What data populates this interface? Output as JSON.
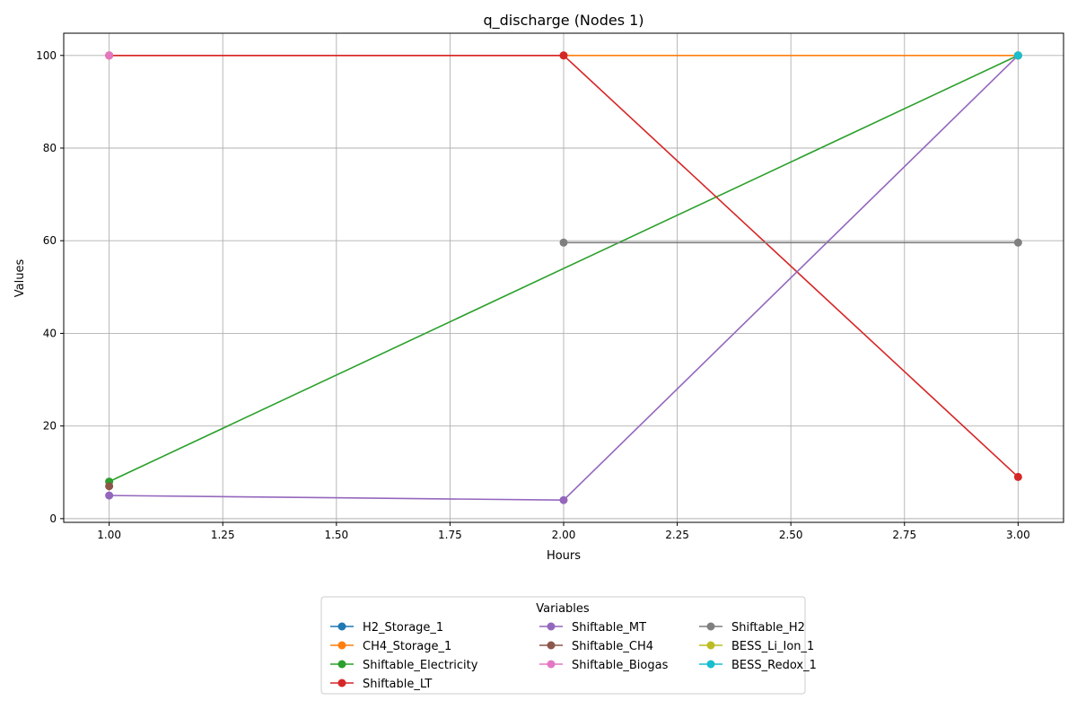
{
  "chart_data": {
    "type": "line",
    "title": "q_discharge (Nodes 1)",
    "xlabel": "Hours",
    "ylabel": "Values",
    "xlim": [
      0.9,
      3.1
    ],
    "ylim": [
      -0.8,
      104.8
    ],
    "xticks": [
      "1.00",
      "1.25",
      "1.50",
      "1.75",
      "2.00",
      "2.25",
      "2.50",
      "2.75",
      "3.00"
    ],
    "yticks": [
      "0",
      "20",
      "40",
      "60",
      "80",
      "100"
    ],
    "grid": true,
    "legend": {
      "title": "Variables",
      "placement": "bottom-center",
      "columns": 3
    },
    "series": [
      {
        "name": "H2_Storage_1",
        "color": "#1f77b4",
        "x": [
          3
        ],
        "y": [
          100
        ]
      },
      {
        "name": "CH4_Storage_1",
        "color": "#ff7f0e",
        "x": [
          1,
          2,
          3
        ],
        "y": [
          100,
          100,
          100
        ]
      },
      {
        "name": "Shiftable_Electricity",
        "color": "#2ca02c",
        "x": [
          1,
          3
        ],
        "y": [
          8,
          100
        ]
      },
      {
        "name": "Shiftable_LT",
        "color": "#d62728",
        "x": [
          1,
          2,
          3
        ],
        "y": [
          100,
          100,
          9
        ]
      },
      {
        "name": "Shiftable_MT",
        "color": "#9467bd",
        "x": [
          1,
          2,
          3
        ],
        "y": [
          5,
          4,
          100
        ]
      },
      {
        "name": "Shiftable_CH4",
        "color": "#8c564b",
        "x": [
          1
        ],
        "y": [
          7
        ]
      },
      {
        "name": "Shiftable_Biogas",
        "color": "#e377c2",
        "x": [
          1
        ],
        "y": [
          100
        ]
      },
      {
        "name": "Shiftable_H2",
        "color": "#7f7f7f",
        "x": [
          2,
          3
        ],
        "y": [
          59.6,
          59.6
        ]
      },
      {
        "name": "BESS_Li_Ion_1",
        "color": "#bcbd22",
        "x": [
          3
        ],
        "y": [
          100
        ]
      },
      {
        "name": "BESS_Redox_1",
        "color": "#17becf",
        "x": [
          3
        ],
        "y": [
          100
        ]
      }
    ]
  }
}
